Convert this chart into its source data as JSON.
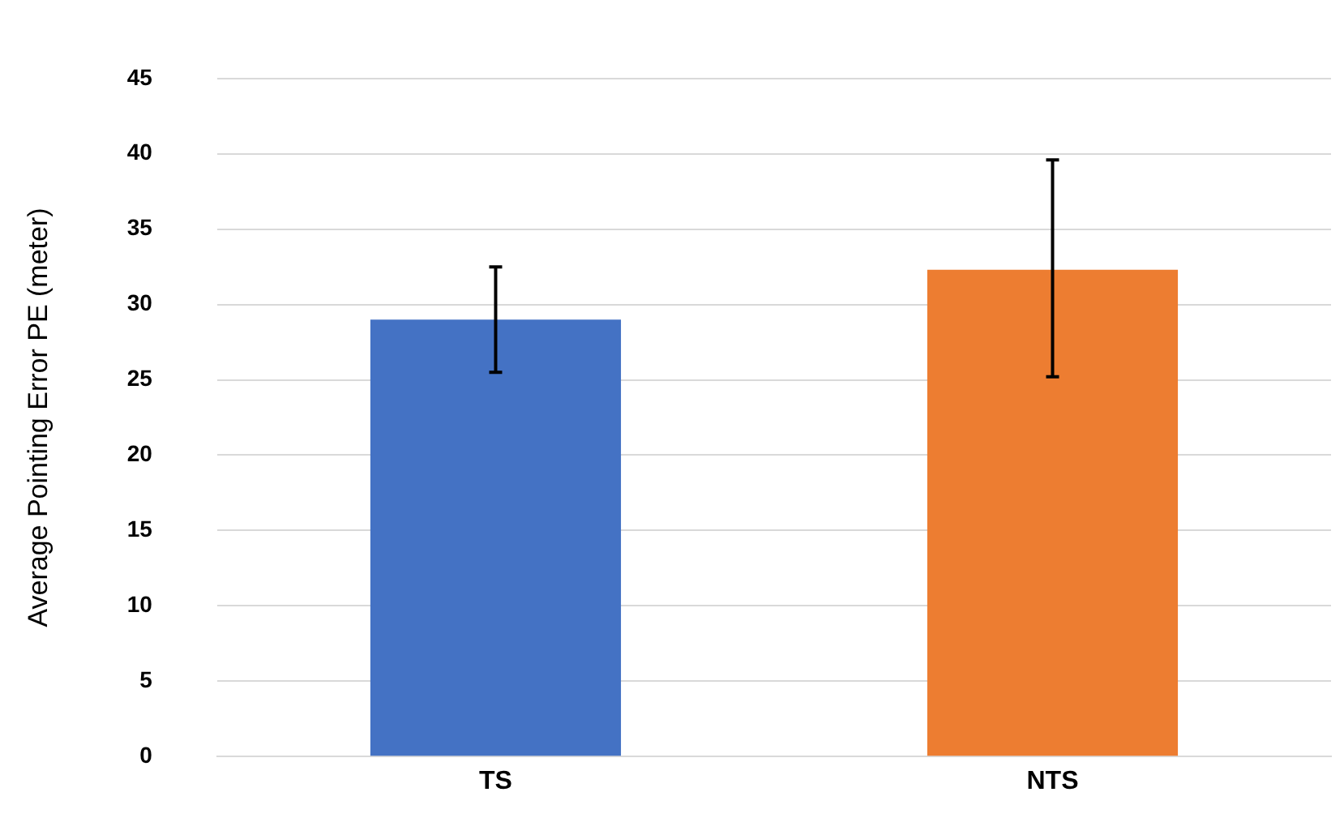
{
  "chart_data": {
    "type": "bar",
    "ylabel": "Average Pointing Error PE (meter)",
    "categories": [
      "TS",
      "NTS"
    ],
    "values": [
      29,
      32.3
    ],
    "colors": [
      "#4472c4",
      "#ed7d31"
    ],
    "errors": [
      [
        25.5,
        32.5
      ],
      [
        25.2,
        39.6
      ]
    ],
    "ylim": [
      0,
      45
    ],
    "yticks": [
      0,
      5,
      10,
      15,
      20,
      25,
      30,
      35,
      40,
      45
    ],
    "grid": "y"
  }
}
